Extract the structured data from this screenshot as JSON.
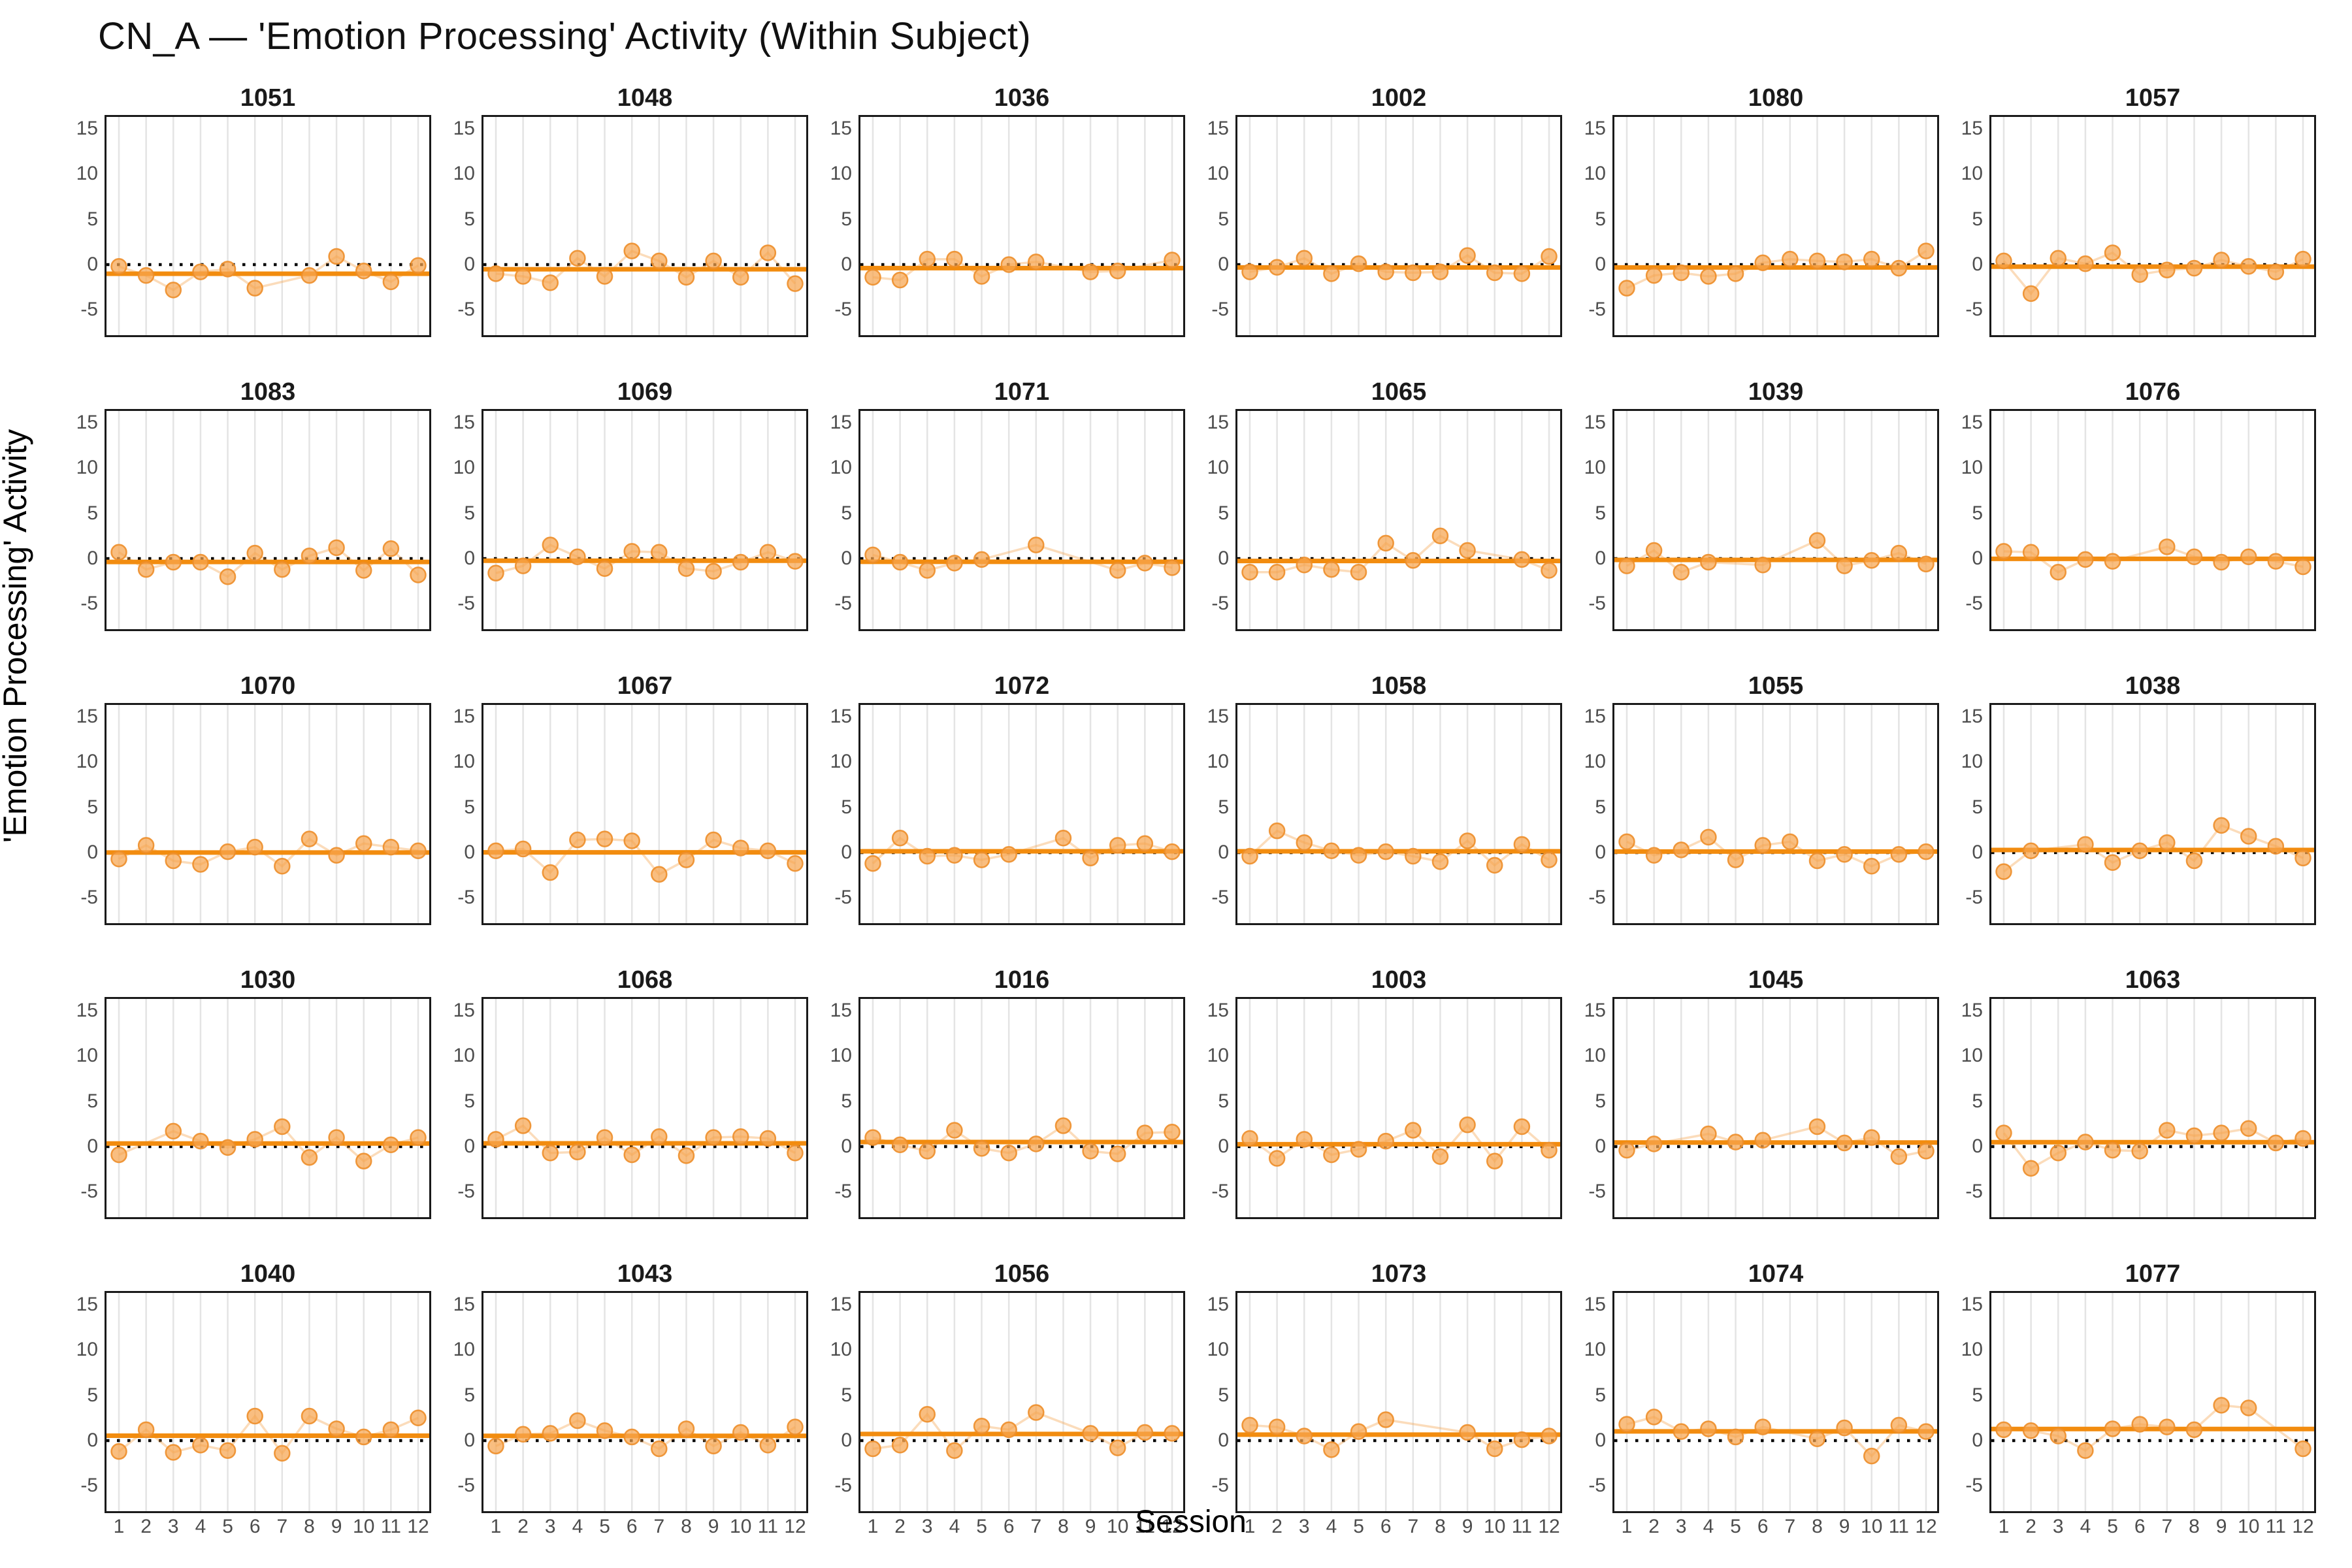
{
  "header": {
    "title": "CN_A — 'Emotion Processing' Activity (Within Subject)"
  },
  "colors": {
    "point_fill": "#F6A54F",
    "point_stroke": "#ED8E2A",
    "connector": "#F5A34C",
    "trend_line": "#F28C0F",
    "zero_line": "#000000",
    "grid_line": "#E4E4E4",
    "panel_border": "#1A1A1A",
    "tick_text": "#4D4D4D",
    "title_text": "#111111"
  },
  "chart_data": {
    "type": "scatter",
    "title": "CN_A — 'Emotion Processing' Activity (Within Subject)",
    "xlabel": "Session",
    "ylabel": "'Emotion Processing' Activity",
    "layout": {
      "rows": 5,
      "cols": 6,
      "legend": "none",
      "grid": "vertical-only"
    },
    "x": [
      1,
      2,
      3,
      4,
      5,
      6,
      7,
      8,
      9,
      10,
      11,
      12
    ],
    "x_tick_labels": [
      "1",
      "2",
      "3",
      "4",
      "5",
      "6",
      "7",
      "8",
      "9",
      "10",
      "11",
      "12"
    ],
    "yticks": [
      -5,
      0,
      5,
      10,
      15
    ],
    "ylim": [
      -8,
      16.5
    ],
    "reference_line_y": 0,
    "trend": "flat mean line per panel (orange)",
    "panels": [
      {
        "subject": "1051",
        "values": [
          -0.2,
          -1.2,
          -2.8,
          -0.8,
          -0.5,
          -2.6,
          null,
          -1.2,
          0.9,
          -0.7,
          -1.9,
          -0.1
        ]
      },
      {
        "subject": "1048",
        "values": [
          -1.0,
          -1.3,
          -2.0,
          0.7,
          -1.3,
          1.5,
          0.4,
          -1.4,
          0.4,
          -1.4,
          1.3,
          -2.1
        ]
      },
      {
        "subject": "1036",
        "values": [
          -1.4,
          -1.7,
          0.6,
          0.6,
          -1.3,
          0.0,
          0.3,
          null,
          -0.8,
          -0.7,
          null,
          0.5
        ]
      },
      {
        "subject": "1002",
        "values": [
          -0.8,
          -0.3,
          0.7,
          -1.0,
          0.1,
          -0.8,
          -0.9,
          -0.8,
          1.0,
          -0.9,
          -1.0,
          0.9
        ]
      },
      {
        "subject": "1080",
        "values": [
          -2.6,
          -1.2,
          -0.9,
          -1.3,
          -1.0,
          0.2,
          0.6,
          0.4,
          0.3,
          0.6,
          -0.4,
          1.5
        ]
      },
      {
        "subject": "1057",
        "values": [
          0.4,
          -3.2,
          0.7,
          0.1,
          1.3,
          -1.1,
          -0.6,
          -0.4,
          0.5,
          -0.2,
          -0.8,
          0.6
        ]
      },
      {
        "subject": "1083",
        "values": [
          0.7,
          -1.2,
          -0.4,
          -0.4,
          -2.0,
          0.6,
          -1.2,
          0.3,
          1.2,
          -1.3,
          1.1,
          -1.8
        ]
      },
      {
        "subject": "1069",
        "values": [
          -1.6,
          -0.8,
          1.5,
          0.2,
          -1.1,
          0.8,
          0.7,
          -1.1,
          -1.4,
          -0.4,
          0.7,
          -0.3
        ]
      },
      {
        "subject": "1071",
        "values": [
          0.4,
          -0.4,
          -1.3,
          -0.5,
          -0.1,
          null,
          1.5,
          null,
          null,
          -1.3,
          -0.5,
          -1.0
        ]
      },
      {
        "subject": "1065",
        "values": [
          -1.5,
          -1.5,
          -0.7,
          -1.2,
          -1.5,
          1.7,
          -0.2,
          2.5,
          0.9,
          null,
          -0.1,
          -1.3
        ]
      },
      {
        "subject": "1039",
        "values": [
          -0.8,
          0.9,
          -1.5,
          -0.4,
          null,
          -0.7,
          null,
          2.0,
          -0.8,
          -0.2,
          0.6,
          -0.6
        ]
      },
      {
        "subject": "1076",
        "values": [
          0.8,
          0.7,
          -1.5,
          -0.1,
          -0.3,
          null,
          1.3,
          0.2,
          -0.4,
          0.2,
          -0.3,
          -0.9
        ]
      },
      {
        "subject": "1070",
        "values": [
          -0.7,
          0.8,
          -0.9,
          -1.3,
          0.1,
          0.6,
          -1.5,
          1.5,
          -0.3,
          1.0,
          0.6,
          0.2
        ]
      },
      {
        "subject": "1067",
        "values": [
          0.2,
          0.4,
          -2.2,
          1.4,
          1.5,
          1.3,
          -2.4,
          -0.8,
          1.4,
          0.5,
          0.2,
          -1.2
        ]
      },
      {
        "subject": "1072",
        "values": [
          -1.2,
          1.6,
          -0.4,
          -0.3,
          -0.8,
          -0.2,
          null,
          1.6,
          -0.6,
          0.8,
          1.0,
          0.1
        ]
      },
      {
        "subject": "1058",
        "values": [
          -0.4,
          2.4,
          1.1,
          0.2,
          -0.3,
          0.1,
          -0.4,
          -1.0,
          1.3,
          -1.4,
          0.9,
          -0.8
        ]
      },
      {
        "subject": "1055",
        "values": [
          1.2,
          -0.3,
          0.3,
          1.7,
          -0.8,
          0.8,
          1.2,
          -0.9,
          -0.2,
          -1.5,
          -0.2,
          0.1
        ]
      },
      {
        "subject": "1038",
        "values": [
          -2.1,
          0.2,
          null,
          0.9,
          -1.1,
          0.2,
          1.1,
          -0.9,
          3.0,
          1.8,
          0.7,
          -0.6
        ]
      },
      {
        "subject": "1030",
        "values": [
          -0.9,
          null,
          1.7,
          0.6,
          -0.1,
          0.8,
          2.2,
          -1.2,
          1.0,
          -1.6,
          0.2,
          1.0
        ]
      },
      {
        "subject": "1068",
        "values": [
          0.8,
          2.3,
          -0.7,
          -0.6,
          1.0,
          -0.9,
          1.1,
          -1.0,
          1.0,
          1.1,
          0.9,
          -0.7
        ]
      },
      {
        "subject": "1016",
        "values": [
          1.0,
          0.2,
          -0.5,
          1.8,
          -0.2,
          -0.7,
          0.3,
          2.3,
          -0.5,
          -0.8,
          1.5,
          1.6
        ]
      },
      {
        "subject": "1003",
        "values": [
          0.9,
          -1.3,
          0.8,
          -0.9,
          -0.3,
          0.6,
          1.8,
          -1.1,
          2.4,
          -1.6,
          2.2,
          -0.4
        ]
      },
      {
        "subject": "1045",
        "values": [
          -0.4,
          0.3,
          null,
          1.4,
          0.5,
          0.7,
          null,
          2.2,
          0.4,
          1.0,
          -1.1,
          -0.5
        ]
      },
      {
        "subject": "1063",
        "values": [
          1.5,
          -2.4,
          -0.7,
          0.5,
          -0.4,
          -0.5,
          1.8,
          1.2,
          1.5,
          2.0,
          0.4,
          0.9
        ]
      },
      {
        "subject": "1040",
        "values": [
          -1.2,
          1.2,
          -1.3,
          -0.5,
          -1.1,
          2.7,
          -1.4,
          2.7,
          1.3,
          0.4,
          1.2,
          2.5
        ]
      },
      {
        "subject": "1043",
        "values": [
          -0.6,
          0.7,
          0.8,
          2.2,
          1.1,
          0.4,
          -0.9,
          1.3,
          -0.6,
          0.9,
          -0.5,
          1.5
        ]
      },
      {
        "subject": "1056",
        "values": [
          -0.9,
          -0.5,
          2.9,
          -1.1,
          1.6,
          1.2,
          3.1,
          null,
          0.8,
          -0.8,
          0.9,
          0.8
        ]
      },
      {
        "subject": "1073",
        "values": [
          1.7,
          1.5,
          0.5,
          -1.0,
          1.0,
          2.3,
          null,
          null,
          0.9,
          -0.9,
          0.1,
          0.5
        ]
      },
      {
        "subject": "1074",
        "values": [
          1.8,
          2.6,
          1.0,
          1.3,
          0.4,
          1.5,
          null,
          0.2,
          1.4,
          -1.7,
          1.7,
          1.0
        ]
      },
      {
        "subject": "1077",
        "values": [
          1.2,
          1.1,
          0.5,
          -1.1,
          1.3,
          1.8,
          1.5,
          1.2,
          3.9,
          3.6,
          null,
          -0.9
        ]
      }
    ]
  },
  "x_axis": {
    "label": "Session"
  },
  "y_axis": {
    "label": "'Emotion Processing' Activity"
  }
}
